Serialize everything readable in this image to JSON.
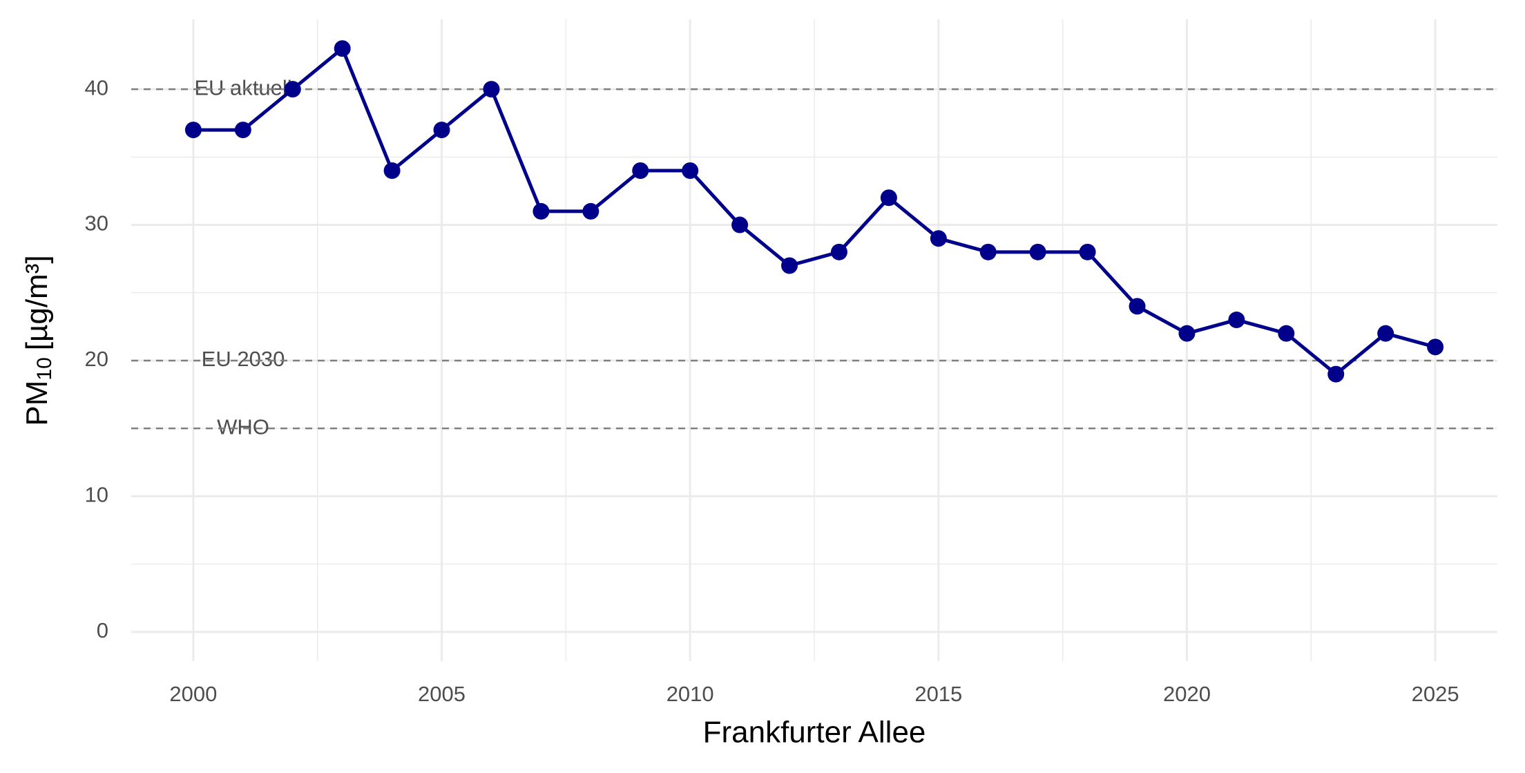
{
  "chart_data": {
    "type": "line",
    "x_label": "Frankfurter Allee",
    "y_label": {
      "main": "PM",
      "sub": "10",
      "unit": "[µg/m³]"
    },
    "x": [
      2000,
      2001,
      2002,
      2003,
      2004,
      2005,
      2006,
      2007,
      2008,
      2009,
      2010,
      2011,
      2012,
      2013,
      2014,
      2015,
      2016,
      2017,
      2018,
      2019,
      2020,
      2021,
      2022,
      2023,
      2024,
      2025
    ],
    "series": [
      {
        "name": "PM10",
        "color": "#00008b",
        "values": [
          37,
          37,
          40,
          43,
          34,
          37,
          40,
          31,
          31,
          34,
          34,
          30,
          27,
          28,
          32,
          29,
          28,
          28,
          28,
          24,
          22,
          23,
          22,
          19,
          22,
          21
        ]
      }
    ],
    "reference_lines": [
      {
        "value": 40,
        "label": "EU aktuell"
      },
      {
        "value": 20,
        "label": "EU 2030"
      },
      {
        "value": 15,
        "label": "WHO"
      }
    ],
    "xlim": [
      1998.75,
      2026.25
    ],
    "xticks": [
      2000,
      2005,
      2010,
      2015,
      2020,
      2025
    ],
    "ylim": [
      -2.15,
      45.15
    ],
    "yticks": [
      0,
      10,
      20,
      30,
      40
    ],
    "grid": true
  }
}
